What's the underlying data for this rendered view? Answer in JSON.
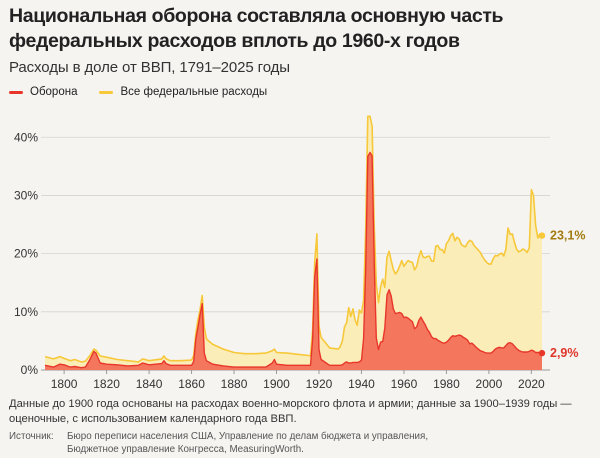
{
  "header": {
    "title": "Национальная оборона составляла основную часть федеральных расходов вплоть до 1960-х годов",
    "subtitle": "Расходы в доле от ВВП, 1791–2025 годы"
  },
  "footer": {
    "note": "Данные до 1900 года основаны на расходах военно-морского флота и армии; данные за 1900–1939 годы — оценочные, с использованием календарного года ВВП.",
    "source_label": "Источник:",
    "source_line1": "Бюро переписи населения США, Управление по делам бюджета и управления,",
    "source_line2": "Бюджетное управление Конгресса, MeasuringWorth."
  },
  "colors": {
    "defense_fill": "#f26b55",
    "defense_line": "#e8372a",
    "total_fill": "#fbedb8",
    "total_line": "#f6c83a",
    "label_total": "#a37b10",
    "label_defense": "#e0352a"
  },
  "chart_data": {
    "type": "area",
    "title": "Национальная оборона составляла основную часть федеральных расходов вплоть до 1960-х годов",
    "subtitle": "Расходы в доле от ВВП, 1791–2025 годы",
    "xlim": [
      1791,
      2025
    ],
    "ylim": [
      0,
      44
    ],
    "x_ticks": [
      1800,
      1820,
      1840,
      1860,
      1880,
      1900,
      1920,
      1940,
      1960,
      1980,
      2000,
      2020
    ],
    "y_ticks": [
      0,
      10,
      20,
      30,
      40
    ],
    "y_tick_labels": [
      "0%",
      "10%",
      "20%",
      "30%",
      "40%"
    ],
    "grid": "horizontal",
    "legend_position": "top-left",
    "end_labels": {
      "total": "23,1%",
      "defense": "2,9%"
    },
    "series": [
      {
        "name": "Все федеральные расходы",
        "points": [
          [
            1791,
            2.3
          ],
          [
            1795,
            1.9
          ],
          [
            1798,
            2.3
          ],
          [
            1800,
            2.0
          ],
          [
            1803,
            1.6
          ],
          [
            1805,
            1.8
          ],
          [
            1808,
            1.4
          ],
          [
            1810,
            1.5
          ],
          [
            1812,
            2.4
          ],
          [
            1814,
            3.6
          ],
          [
            1815,
            3.4
          ],
          [
            1817,
            2.4
          ],
          [
            1820,
            2.2
          ],
          [
            1825,
            1.8
          ],
          [
            1830,
            1.6
          ],
          [
            1835,
            1.4
          ],
          [
            1837,
            1.9
          ],
          [
            1840,
            1.6
          ],
          [
            1846,
            1.9
          ],
          [
            1847,
            2.4
          ],
          [
            1848,
            1.9
          ],
          [
            1850,
            1.6
          ],
          [
            1855,
            1.6
          ],
          [
            1860,
            1.7
          ],
          [
            1861,
            2.5
          ],
          [
            1862,
            6.2
          ],
          [
            1863,
            8.6
          ],
          [
            1864,
            10.3
          ],
          [
            1865,
            12.8
          ],
          [
            1866,
            7.4
          ],
          [
            1867,
            5.4
          ],
          [
            1868,
            5.0
          ],
          [
            1870,
            4.4
          ],
          [
            1875,
            3.6
          ],
          [
            1880,
            3.0
          ],
          [
            1885,
            2.8
          ],
          [
            1890,
            2.8
          ],
          [
            1895,
            2.9
          ],
          [
            1898,
            3.3
          ],
          [
            1899,
            3.6
          ],
          [
            1900,
            3.0
          ],
          [
            1905,
            2.9
          ],
          [
            1910,
            2.7
          ],
          [
            1915,
            2.5
          ],
          [
            1916,
            2.4
          ],
          [
            1917,
            6.8
          ],
          [
            1918,
            18.5
          ],
          [
            1919,
            23.4
          ],
          [
            1920,
            7.5
          ],
          [
            1921,
            5.6
          ],
          [
            1925,
            3.8
          ],
          [
            1929,
            3.6
          ],
          [
            1930,
            4.0
          ],
          [
            1931,
            5.0
          ],
          [
            1932,
            7.4
          ],
          [
            1933,
            8.1
          ],
          [
            1934,
            10.7
          ],
          [
            1935,
            9.2
          ],
          [
            1936,
            10.5
          ],
          [
            1937,
            8.6
          ],
          [
            1938,
            7.7
          ],
          [
            1939,
            10.3
          ],
          [
            1940,
            9.8
          ],
          [
            1941,
            12.0
          ],
          [
            1942,
            24.3
          ],
          [
            1943,
            43.6
          ],
          [
            1944,
            43.6
          ],
          [
            1945,
            41.9
          ],
          [
            1946,
            24.8
          ],
          [
            1947,
            14.8
          ],
          [
            1948,
            11.6
          ],
          [
            1949,
            14.3
          ],
          [
            1950,
            15.6
          ],
          [
            1951,
            14.2
          ],
          [
            1952,
            19.4
          ],
          [
            1953,
            20.4
          ],
          [
            1954,
            18.8
          ],
          [
            1955,
            17.3
          ],
          [
            1956,
            16.5
          ],
          [
            1957,
            17.0
          ],
          [
            1958,
            17.9
          ],
          [
            1959,
            18.8
          ],
          [
            1960,
            17.8
          ],
          [
            1961,
            18.4
          ],
          [
            1962,
            18.8
          ],
          [
            1963,
            18.6
          ],
          [
            1964,
            18.5
          ],
          [
            1965,
            17.2
          ],
          [
            1966,
            17.8
          ],
          [
            1967,
            19.4
          ],
          [
            1968,
            20.5
          ],
          [
            1969,
            19.4
          ],
          [
            1970,
            19.3
          ],
          [
            1971,
            19.5
          ],
          [
            1972,
            19.6
          ],
          [
            1973,
            18.7
          ],
          [
            1974,
            18.7
          ],
          [
            1975,
            21.3
          ],
          [
            1976,
            21.4
          ],
          [
            1977,
            20.7
          ],
          [
            1978,
            20.7
          ],
          [
            1979,
            20.1
          ],
          [
            1980,
            21.7
          ],
          [
            1981,
            22.2
          ],
          [
            1982,
            23.1
          ],
          [
            1983,
            23.5
          ],
          [
            1984,
            22.2
          ],
          [
            1985,
            22.8
          ],
          [
            1986,
            22.5
          ],
          [
            1987,
            21.6
          ],
          [
            1988,
            21.3
          ],
          [
            1989,
            21.2
          ],
          [
            1990,
            21.9
          ],
          [
            1991,
            22.3
          ],
          [
            1992,
            22.1
          ],
          [
            1993,
            21.4
          ],
          [
            1994,
            21.0
          ],
          [
            1995,
            20.6
          ],
          [
            1996,
            20.2
          ],
          [
            1997,
            19.5
          ],
          [
            1998,
            18.9
          ],
          [
            1999,
            18.5
          ],
          [
            2000,
            18.2
          ],
          [
            2001,
            18.2
          ],
          [
            2002,
            19.1
          ],
          [
            2003,
            19.7
          ],
          [
            2004,
            19.6
          ],
          [
            2005,
            19.9
          ],
          [
            2006,
            20.1
          ],
          [
            2007,
            19.6
          ],
          [
            2008,
            20.8
          ],
          [
            2009,
            24.4
          ],
          [
            2010,
            23.3
          ],
          [
            2011,
            23.4
          ],
          [
            2012,
            22.0
          ],
          [
            2013,
            20.8
          ],
          [
            2014,
            20.3
          ],
          [
            2015,
            20.5
          ],
          [
            2016,
            20.8
          ],
          [
            2017,
            20.6
          ],
          [
            2018,
            20.2
          ],
          [
            2019,
            21.0
          ],
          [
            2020,
            31.0
          ],
          [
            2021,
            30.0
          ],
          [
            2022,
            24.9
          ],
          [
            2023,
            22.7
          ],
          [
            2024,
            23.4
          ],
          [
            2025,
            23.1
          ]
        ]
      },
      {
        "name": "Оборона",
        "points": [
          [
            1791,
            0.8
          ],
          [
            1795,
            0.5
          ],
          [
            1798,
            1.0
          ],
          [
            1800,
            0.9
          ],
          [
            1803,
            0.5
          ],
          [
            1805,
            0.6
          ],
          [
            1808,
            0.4
          ],
          [
            1810,
            0.5
          ],
          [
            1812,
            1.7
          ],
          [
            1814,
            3.2
          ],
          [
            1815,
            2.9
          ],
          [
            1817,
            1.2
          ],
          [
            1820,
            1.0
          ],
          [
            1825,
            0.9
          ],
          [
            1830,
            0.7
          ],
          [
            1835,
            0.8
          ],
          [
            1837,
            1.2
          ],
          [
            1840,
            0.9
          ],
          [
            1846,
            1.1
          ],
          [
            1847,
            1.6
          ],
          [
            1848,
            1.1
          ],
          [
            1850,
            0.8
          ],
          [
            1855,
            0.8
          ],
          [
            1860,
            0.8
          ],
          [
            1861,
            1.5
          ],
          [
            1862,
            5.3
          ],
          [
            1863,
            7.3
          ],
          [
            1864,
            9.4
          ],
          [
            1865,
            11.4
          ],
          [
            1866,
            2.9
          ],
          [
            1867,
            1.6
          ],
          [
            1868,
            1.4
          ],
          [
            1870,
            1.0
          ],
          [
            1875,
            0.7
          ],
          [
            1880,
            0.5
          ],
          [
            1885,
            0.5
          ],
          [
            1890,
            0.5
          ],
          [
            1895,
            0.5
          ],
          [
            1898,
            1.2
          ],
          [
            1899,
            1.8
          ],
          [
            1900,
            1.0
          ],
          [
            1905,
            0.8
          ],
          [
            1910,
            0.8
          ],
          [
            1915,
            0.8
          ],
          [
            1916,
            0.8
          ],
          [
            1917,
            5.2
          ],
          [
            1918,
            16.0
          ],
          [
            1919,
            19.1
          ],
          [
            1920,
            3.5
          ],
          [
            1921,
            1.8
          ],
          [
            1925,
            0.8
          ],
          [
            1929,
            0.8
          ],
          [
            1930,
            0.8
          ],
          [
            1931,
            0.9
          ],
          [
            1932,
            1.2
          ],
          [
            1933,
            1.4
          ],
          [
            1934,
            1.2
          ],
          [
            1935,
            1.2
          ],
          [
            1936,
            1.3
          ],
          [
            1937,
            1.3
          ],
          [
            1938,
            1.3
          ],
          [
            1939,
            1.4
          ],
          [
            1940,
            1.7
          ],
          [
            1941,
            5.4
          ],
          [
            1942,
            17.5
          ],
          [
            1943,
            36.7
          ],
          [
            1944,
            37.4
          ],
          [
            1945,
            36.8
          ],
          [
            1946,
            18.7
          ],
          [
            1947,
            5.5
          ],
          [
            1948,
            3.5
          ],
          [
            1949,
            4.8
          ],
          [
            1950,
            4.9
          ],
          [
            1951,
            7.2
          ],
          [
            1952,
            12.9
          ],
          [
            1953,
            13.8
          ],
          [
            1954,
            12.7
          ],
          [
            1955,
            10.5
          ],
          [
            1956,
            9.7
          ],
          [
            1957,
            9.8
          ],
          [
            1958,
            9.9
          ],
          [
            1959,
            9.7
          ],
          [
            1960,
            9.0
          ],
          [
            1961,
            9.1
          ],
          [
            1962,
            8.9
          ],
          [
            1963,
            8.6
          ],
          [
            1964,
            8.3
          ],
          [
            1965,
            7.1
          ],
          [
            1966,
            7.4
          ],
          [
            1967,
            8.5
          ],
          [
            1968,
            9.1
          ],
          [
            1969,
            8.4
          ],
          [
            1970,
            7.8
          ],
          [
            1971,
            7.0
          ],
          [
            1972,
            6.5
          ],
          [
            1973,
            5.7
          ],
          [
            1974,
            5.4
          ],
          [
            1975,
            5.4
          ],
          [
            1976,
            5.1
          ],
          [
            1977,
            4.9
          ],
          [
            1978,
            4.7
          ],
          [
            1979,
            4.6
          ],
          [
            1980,
            4.8
          ],
          [
            1981,
            5.1
          ],
          [
            1982,
            5.6
          ],
          [
            1983,
            5.9
          ],
          [
            1984,
            5.8
          ],
          [
            1985,
            5.9
          ],
          [
            1986,
            6.0
          ],
          [
            1987,
            5.9
          ],
          [
            1988,
            5.6
          ],
          [
            1989,
            5.4
          ],
          [
            1990,
            5.1
          ],
          [
            1991,
            4.5
          ],
          [
            1992,
            4.6
          ],
          [
            1993,
            4.3
          ],
          [
            1994,
            3.9
          ],
          [
            1995,
            3.6
          ],
          [
            1996,
            3.3
          ],
          [
            1997,
            3.2
          ],
          [
            1998,
            3.0
          ],
          [
            1999,
            2.9
          ],
          [
            2000,
            2.9
          ],
          [
            2001,
            2.9
          ],
          [
            2002,
            3.2
          ],
          [
            2003,
            3.6
          ],
          [
            2004,
            3.8
          ],
          [
            2005,
            3.9
          ],
          [
            2006,
            3.8
          ],
          [
            2007,
            3.8
          ],
          [
            2008,
            4.2
          ],
          [
            2009,
            4.6
          ],
          [
            2010,
            4.7
          ],
          [
            2011,
            4.5
          ],
          [
            2012,
            4.1
          ],
          [
            2013,
            3.7
          ],
          [
            2014,
            3.4
          ],
          [
            2015,
            3.2
          ],
          [
            2016,
            3.1
          ],
          [
            2017,
            3.1
          ],
          [
            2018,
            3.1
          ],
          [
            2019,
            3.2
          ],
          [
            2020,
            3.4
          ],
          [
            2021,
            3.3
          ],
          [
            2022,
            3.0
          ],
          [
            2023,
            3.0
          ],
          [
            2024,
            3.0
          ],
          [
            2025,
            2.9
          ]
        ]
      }
    ]
  }
}
